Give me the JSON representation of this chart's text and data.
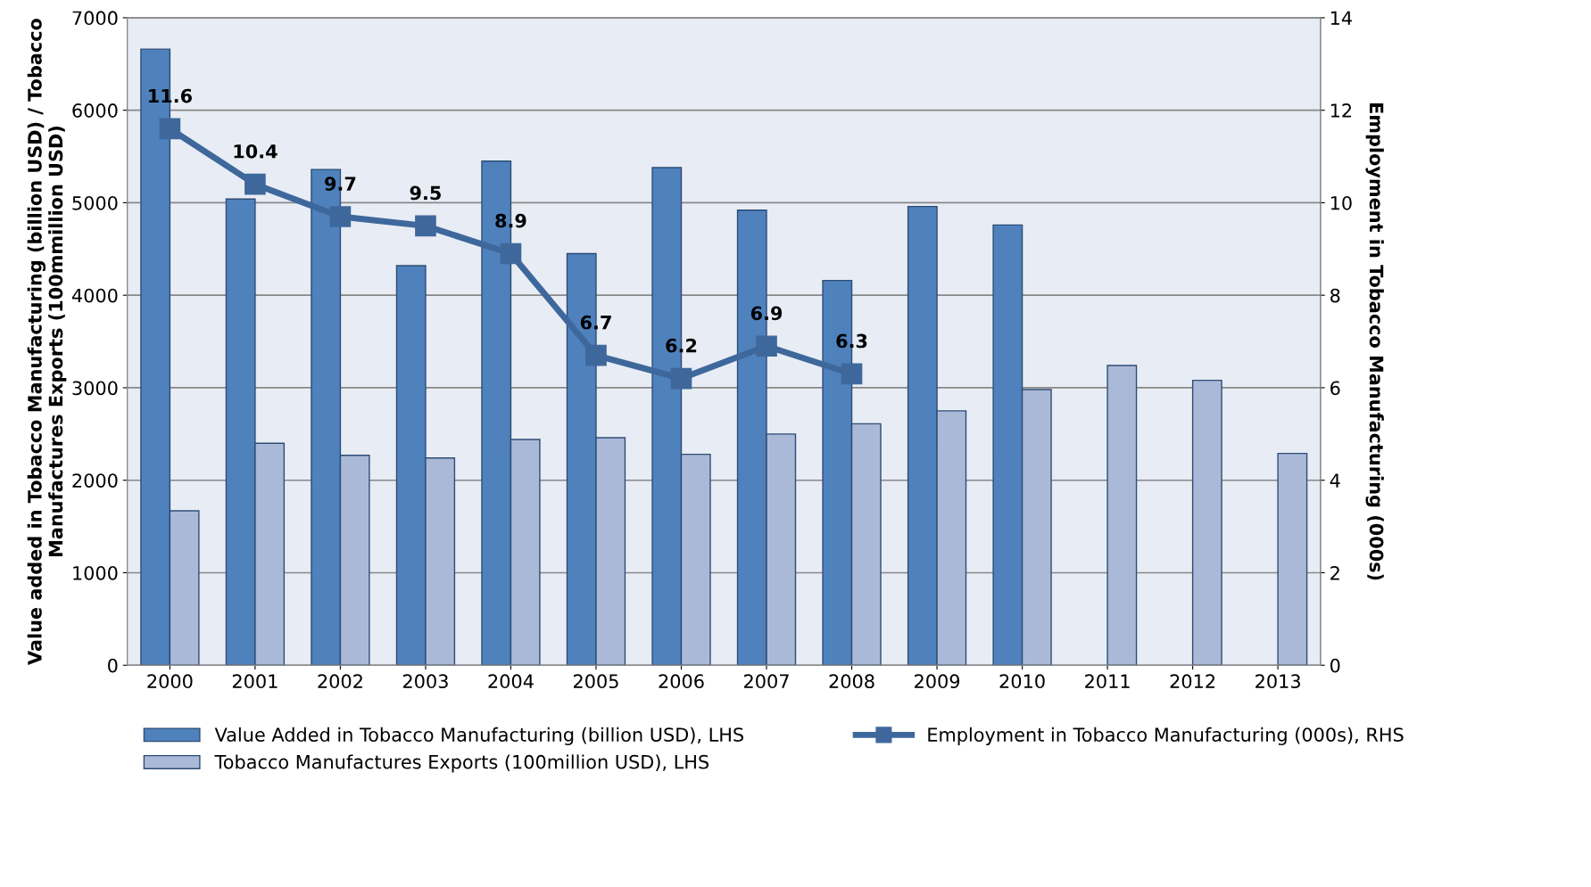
{
  "chart_data": {
    "type": "bar",
    "categories": [
      "2000",
      "2001",
      "2002",
      "2003",
      "2004",
      "2005",
      "2006",
      "2007",
      "2008",
      "2009",
      "2010",
      "2011",
      "2012",
      "2013"
    ],
    "ylabel": "Value added in Tobacco Manufacturing (billion USD) / Tobacco Manufactures Exports (100mmillion USD)",
    "y2label": "Employment in Tobacco Manufacturing (000s)",
    "ylim": [
      0,
      7000
    ],
    "yticks": [
      0,
      1000,
      2000,
      3000,
      4000,
      5000,
      6000,
      7000
    ],
    "y2lim": [
      0,
      14
    ],
    "y2ticks": [
      0,
      2,
      4,
      6,
      8,
      10,
      12,
      14
    ],
    "grid": "y",
    "legend": "bottom",
    "series": [
      {
        "name": "Value Added in Tobacco Manufacturing (billion USD), LHS",
        "color": "#4f81bd",
        "values": [
          6660,
          5040,
          5360,
          4320,
          5450,
          4450,
          5380,
          4920,
          4160,
          4960,
          4760,
          null,
          null,
          null
        ]
      },
      {
        "name": "Tobacco Manufactures Exports (100million USD), LHS",
        "color": "#abb9d8",
        "values": [
          1670,
          2400,
          2270,
          2240,
          2440,
          2460,
          2280,
          2500,
          2610,
          2750,
          2980,
          3240,
          3080,
          2290
        ]
      },
      {
        "name": "Employment in Tobacco Manufacturing (000s), RHS",
        "type": "line",
        "axis": "y2",
        "color": "#3e689c",
        "marker": "square",
        "data_labels": true,
        "values": [
          11.6,
          10.4,
          9.7,
          9.5,
          8.9,
          6.7,
          6.2,
          6.9,
          6.3,
          null,
          null,
          null,
          null,
          null
        ]
      }
    ]
  }
}
